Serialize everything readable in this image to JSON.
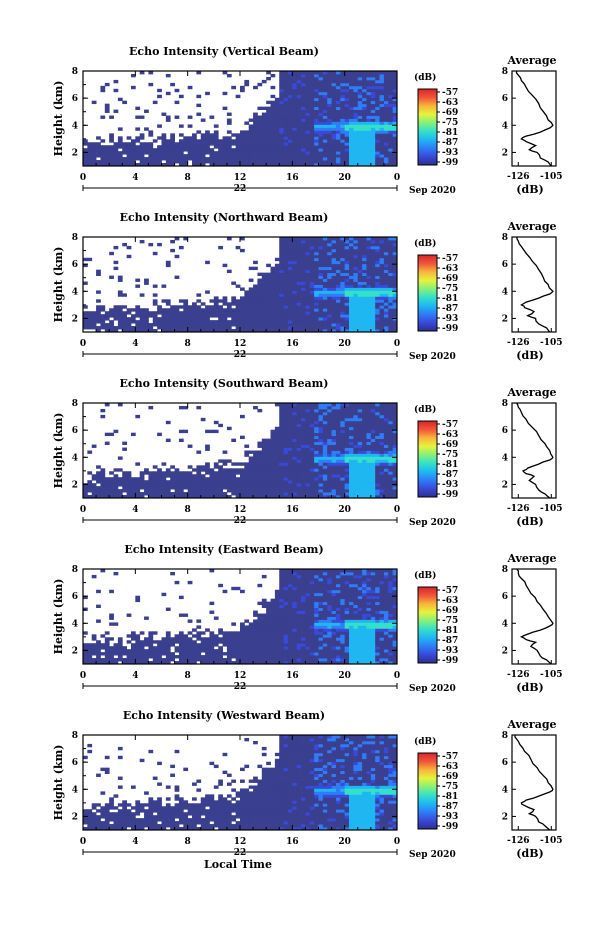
{
  "x_axis_label": "Local Time",
  "chart_data": [
    {
      "type": "heatmap",
      "title": "Echo Intensity (Vertical Beam)",
      "ylabel": "Height (km)",
      "xlabel": "",
      "date_day": "22",
      "date_suffix": "Sep 2020",
      "x_ticks": [
        "0",
        "4",
        "8",
        "12",
        "16",
        "20",
        "0"
      ],
      "xlim": [
        0,
        24
      ],
      "y_ticks": [
        "2",
        "4",
        "6",
        "8"
      ],
      "ylim": [
        1,
        8
      ],
      "colorbar": {
        "unit": "(dB)",
        "ticks": [
          "-57",
          "-63",
          "-69",
          "-75",
          "-81",
          "-87",
          "-93",
          "-99"
        ]
      },
      "profile": {
        "title": "Average",
        "xlabel": "(dB)",
        "x_ticks": [
          "-126",
          "-105"
        ],
        "xlim": [
          -130,
          -102
        ],
        "y_ticks": [
          "2",
          "4",
          "6",
          "8"
        ],
        "ylim": [
          1,
          8
        ],
        "points": [
          {
            "dB": -105,
            "h": 1.0
          },
          {
            "dB": -107,
            "h": 1.3
          },
          {
            "dB": -112,
            "h": 1.6
          },
          {
            "dB": -114,
            "h": 2.0
          },
          {
            "dB": -119,
            "h": 2.2
          },
          {
            "dB": -115,
            "h": 2.5
          },
          {
            "dB": -121,
            "h": 2.8
          },
          {
            "dB": -124,
            "h": 3.0
          },
          {
            "dB": -121,
            "h": 3.2
          },
          {
            "dB": -112,
            "h": 3.5
          },
          {
            "dB": -106,
            "h": 3.8
          },
          {
            "dB": -104,
            "h": 4.0
          },
          {
            "dB": -107,
            "h": 4.4
          },
          {
            "dB": -110,
            "h": 5.0
          },
          {
            "dB": -113,
            "h": 5.6
          },
          {
            "dB": -117,
            "h": 6.2
          },
          {
            "dB": -121,
            "h": 6.8
          },
          {
            "dB": -124,
            "h": 7.3
          },
          {
            "dB": -126,
            "h": 7.7
          },
          {
            "dB": -127,
            "h": 8.0
          }
        ]
      }
    },
    {
      "type": "heatmap",
      "title": "Echo Intensity (Northward Beam)",
      "ylabel": "Height (km)",
      "xlabel": "",
      "date_day": "22",
      "date_suffix": "Sep 2020",
      "x_ticks": [
        "0",
        "4",
        "8",
        "12",
        "16",
        "20",
        "0"
      ],
      "xlim": [
        0,
        24
      ],
      "y_ticks": [
        "2",
        "4",
        "6",
        "8"
      ],
      "ylim": [
        1,
        8
      ],
      "colorbar": {
        "unit": "(dB)",
        "ticks": [
          "-57",
          "-63",
          "-69",
          "-75",
          "-81",
          "-87",
          "-93",
          "-99"
        ]
      },
      "profile": {
        "title": "Average",
        "xlabel": "(dB)",
        "x_ticks": [
          "-126",
          "-105"
        ],
        "xlim": [
          -130,
          -102
        ],
        "y_ticks": [
          "2",
          "4",
          "6",
          "8"
        ],
        "ylim": [
          1,
          8
        ],
        "points": [
          {
            "dB": -106,
            "h": 1.0
          },
          {
            "dB": -108,
            "h": 1.3
          },
          {
            "dB": -113,
            "h": 1.6
          },
          {
            "dB": -115,
            "h": 2.0
          },
          {
            "dB": -120,
            "h": 2.2
          },
          {
            "dB": -116,
            "h": 2.5
          },
          {
            "dB": -122,
            "h": 2.8
          },
          {
            "dB": -124,
            "h": 3.0
          },
          {
            "dB": -121,
            "h": 3.2
          },
          {
            "dB": -113,
            "h": 3.5
          },
          {
            "dB": -106,
            "h": 3.8
          },
          {
            "dB": -104,
            "h": 4.0
          },
          {
            "dB": -107,
            "h": 4.5
          },
          {
            "dB": -110,
            "h": 5.0
          },
          {
            "dB": -113,
            "h": 5.6
          },
          {
            "dB": -117,
            "h": 6.2
          },
          {
            "dB": -121,
            "h": 6.8
          },
          {
            "dB": -124,
            "h": 7.3
          },
          {
            "dB": -126,
            "h": 7.7
          },
          {
            "dB": -127,
            "h": 8.0
          }
        ]
      }
    },
    {
      "type": "heatmap",
      "title": "Echo Intensity (Southward Beam)",
      "ylabel": "Height (km)",
      "xlabel": "",
      "date_day": "22",
      "date_suffix": "Sep 2020",
      "x_ticks": [
        "0",
        "4",
        "8",
        "12",
        "16",
        "20",
        "0"
      ],
      "xlim": [
        0,
        24
      ],
      "y_ticks": [
        "2",
        "4",
        "6",
        "8"
      ],
      "ylim": [
        1,
        8
      ],
      "colorbar": {
        "unit": "(dB)",
        "ticks": [
          "-57",
          "-63",
          "-69",
          "-75",
          "-81",
          "-87",
          "-93",
          "-99"
        ]
      },
      "profile": {
        "title": "Average",
        "xlabel": "(dB)",
        "x_ticks": [
          "-126",
          "-105"
        ],
        "xlim": [
          -130,
          -102
        ],
        "y_ticks": [
          "2",
          "4",
          "6",
          "8"
        ],
        "ylim": [
          1,
          8
        ],
        "points": [
          {
            "dB": -106,
            "h": 1.0
          },
          {
            "dB": -109,
            "h": 1.3
          },
          {
            "dB": -113,
            "h": 1.6
          },
          {
            "dB": -115,
            "h": 2.0
          },
          {
            "dB": -119,
            "h": 2.3
          },
          {
            "dB": -116,
            "h": 2.6
          },
          {
            "dB": -121,
            "h": 2.8
          },
          {
            "dB": -123,
            "h": 3.0
          },
          {
            "dB": -120,
            "h": 3.2
          },
          {
            "dB": -113,
            "h": 3.5
          },
          {
            "dB": -106,
            "h": 3.8
          },
          {
            "dB": -104,
            "h": 4.0
          },
          {
            "dB": -106,
            "h": 4.5
          },
          {
            "dB": -109,
            "h": 5.0
          },
          {
            "dB": -113,
            "h": 5.6
          },
          {
            "dB": -117,
            "h": 6.2
          },
          {
            "dB": -121,
            "h": 6.8
          },
          {
            "dB": -124,
            "h": 7.3
          },
          {
            "dB": -126,
            "h": 7.7
          },
          {
            "dB": -127,
            "h": 8.0
          }
        ]
      }
    },
    {
      "type": "heatmap",
      "title": "Echo Intensity (Eastward Beam)",
      "ylabel": "Height (km)",
      "xlabel": "",
      "date_day": "22",
      "date_suffix": "Sep 2020",
      "x_ticks": [
        "0",
        "4",
        "8",
        "12",
        "16",
        "20",
        "0"
      ],
      "xlim": [
        0,
        24
      ],
      "y_ticks": [
        "2",
        "4",
        "6",
        "8"
      ],
      "ylim": [
        1,
        8
      ],
      "colorbar": {
        "unit": "(dB)",
        "ticks": [
          "-57",
          "-63",
          "-69",
          "-75",
          "-81",
          "-87",
          "-93",
          "-99"
        ]
      },
      "profile": {
        "title": "Average",
        "xlabel": "(dB)",
        "x_ticks": [
          "-126",
          "-105"
        ],
        "xlim": [
          -130,
          -102
        ],
        "y_ticks": [
          "2",
          "4",
          "6",
          "8"
        ],
        "ylim": [
          1,
          8
        ],
        "points": [
          {
            "dB": -105,
            "h": 1.0
          },
          {
            "dB": -108,
            "h": 1.3
          },
          {
            "dB": -112,
            "h": 1.6
          },
          {
            "dB": -114,
            "h": 2.0
          },
          {
            "dB": -118,
            "h": 2.3
          },
          {
            "dB": -115,
            "h": 2.6
          },
          {
            "dB": -121,
            "h": 2.8
          },
          {
            "dB": -124,
            "h": 3.0
          },
          {
            "dB": -120,
            "h": 3.2
          },
          {
            "dB": -112,
            "h": 3.5
          },
          {
            "dB": -106,
            "h": 3.8
          },
          {
            "dB": -104,
            "h": 4.0
          },
          {
            "dB": -107,
            "h": 4.5
          },
          {
            "dB": -110,
            "h": 5.0
          },
          {
            "dB": -114,
            "h": 5.6
          },
          {
            "dB": -118,
            "h": 6.2
          },
          {
            "dB": -121,
            "h": 6.8
          },
          {
            "dB": -124,
            "h": 7.3
          },
          {
            "dB": -126,
            "h": 7.7
          },
          {
            "dB": -127,
            "h": 8.0
          }
        ]
      }
    },
    {
      "type": "heatmap",
      "title": "Echo Intensity (Westward Beam)",
      "ylabel": "Height (km)",
      "xlabel": "Local Time",
      "date_day": "22",
      "date_suffix": "Sep 2020",
      "x_ticks": [
        "0",
        "4",
        "8",
        "12",
        "16",
        "20",
        "0"
      ],
      "xlim": [
        0,
        24
      ],
      "y_ticks": [
        "2",
        "4",
        "6",
        "8"
      ],
      "ylim": [
        1,
        8
      ],
      "colorbar": {
        "unit": "(dB)",
        "ticks": [
          "-57",
          "-63",
          "-69",
          "-75",
          "-81",
          "-87",
          "-93",
          "-99"
        ]
      },
      "profile": {
        "title": "Average",
        "xlabel": "(dB)",
        "x_ticks": [
          "-126",
          "-105"
        ],
        "xlim": [
          -130,
          -102
        ],
        "y_ticks": [
          "2",
          "4",
          "6",
          "8"
        ],
        "ylim": [
          1,
          8
        ],
        "points": [
          {
            "dB": -106,
            "h": 1.0
          },
          {
            "dB": -109,
            "h": 1.3
          },
          {
            "dB": -113,
            "h": 1.6
          },
          {
            "dB": -115,
            "h": 2.0
          },
          {
            "dB": -119,
            "h": 2.2
          },
          {
            "dB": -116,
            "h": 2.5
          },
          {
            "dB": -122,
            "h": 2.8
          },
          {
            "dB": -124,
            "h": 3.0
          },
          {
            "dB": -121,
            "h": 3.2
          },
          {
            "dB": -113,
            "h": 3.5
          },
          {
            "dB": -106,
            "h": 3.8
          },
          {
            "dB": -104,
            "h": 4.0
          },
          {
            "dB": -107,
            "h": 4.5
          },
          {
            "dB": -110,
            "h": 5.0
          },
          {
            "dB": -114,
            "h": 5.6
          },
          {
            "dB": -118,
            "h": 6.2
          },
          {
            "dB": -122,
            "h": 6.8
          },
          {
            "dB": -125,
            "h": 7.3
          },
          {
            "dB": -127,
            "h": 7.7
          },
          {
            "dB": -128,
            "h": 8.0
          }
        ]
      }
    }
  ],
  "colors": {
    "background": "#ffffff",
    "ink": "#000000",
    "heat_base": "#3b3f8f",
    "colormap": [
      "#2c2f8c",
      "#3949d9",
      "#2f7df6",
      "#1fb7f2",
      "#34e0c8",
      "#86f07a",
      "#e6f23c",
      "#f8b53a",
      "#f0543a",
      "#d9262c"
    ]
  }
}
